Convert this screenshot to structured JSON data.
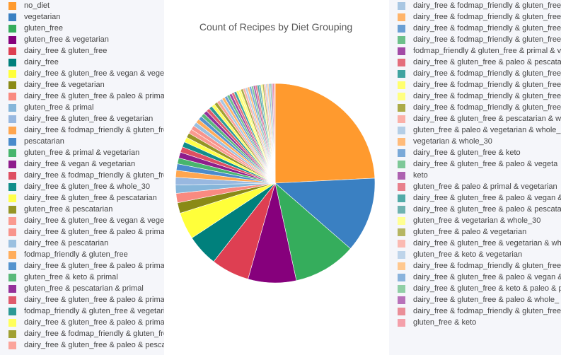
{
  "chart_data": {
    "type": "pie",
    "title": "Count of Recipes by Diet Grouping",
    "direction": "clockwise",
    "start": "12 o'clock",
    "legend_left": [
      {
        "label": "no_diet",
        "color": "#ff9a2e"
      },
      {
        "label": "vegetarian",
        "color": "#3a80c2"
      },
      {
        "label": "gluten_free",
        "color": "#35ad5c"
      },
      {
        "label": "gluten_free & vegetarian",
        "color": "#86007c"
      },
      {
        "label": "dairy_free & gluten_free",
        "color": "#de3f52"
      },
      {
        "label": "dairy_free",
        "color": "#00807c"
      },
      {
        "label": "dairy_free & gluten_free & vegan & vegeta",
        "color": "#ffff3a"
      },
      {
        "label": "dairy_free & vegetarian",
        "color": "#8a8a16"
      },
      {
        "label": "dairy_free & gluten_free & paleo & primal &",
        "color": "#f98a80"
      },
      {
        "label": "gluten_free & primal",
        "color": "#86b6da"
      },
      {
        "label": "dairy_free & gluten_free & vegetarian",
        "color": "#98b8e0"
      },
      {
        "label": "dairy_free & fodmap_friendly & gluten_free",
        "color": "#ffa64f"
      },
      {
        "label": "pescatarian",
        "color": "#4a8bcc"
      },
      {
        "label": "gluten_free & primal & vegetarian",
        "color": "#47b56d"
      },
      {
        "label": "dairy_free & vegan & vegetarian",
        "color": "#8e1c8c"
      },
      {
        "label": "dairy_free & fodmap_friendly & gluten_free",
        "color": "#de4f62"
      },
      {
        "label": "dairy_free & gluten_free & whole_30",
        "color": "#118e8a"
      },
      {
        "label": "dairy_free & gluten_free & pescatarian",
        "color": "#ffff4a"
      },
      {
        "label": "gluten_free & pescatarian",
        "color": "#959526"
      },
      {
        "label": "dairy_free & gluten_free & vegan & vegeta",
        "color": "#fa9a90"
      },
      {
        "label": "dairy_free & gluten_free & paleo & primal",
        "color": "#f8948c"
      },
      {
        "label": "dairy_free & pescatarian",
        "color": "#9bc0e0"
      },
      {
        "label": "fodmap_friendly & gluten_free",
        "color": "#ffad5c"
      },
      {
        "label": "dairy_free & gluten_free & paleo & primal &",
        "color": "#5593ce"
      },
      {
        "label": "gluten_free & keto & primal",
        "color": "#5ab97a"
      },
      {
        "label": "gluten_free & pescatarian & primal",
        "color": "#95309a"
      },
      {
        "label": "dairy_free & gluten_free & paleo & primal &",
        "color": "#e05a6c"
      },
      {
        "label": "fodmap_friendly & gluten_free & vegetaria",
        "color": "#2c9996"
      },
      {
        "label": "dairy_free & gluten_free & paleo & primal &",
        "color": "#ffff5c"
      },
      {
        "label": "dairy_free & fodmap_friendly & gluten_free",
        "color": "#a0a032"
      },
      {
        "label": "dairy_free & gluten_free & paleo & pescata",
        "color": "#fba49b"
      }
    ],
    "legend_right": [
      {
        "label": "dairy_free & fodmap_friendly & gluten_free",
        "color": "#a8c6e2"
      },
      {
        "label": "dairy_free & fodmap_friendly & gluten_free",
        "color": "#ffb46a"
      },
      {
        "label": "dairy_free & fodmap_friendly & gluten_free",
        "color": "#6a9fd4"
      },
      {
        "label": "dairy_free & fodmap_friendly & gluten_free",
        "color": "#6cc08a"
      },
      {
        "label": "fodmap_friendly & gluten_free & primal & v",
        "color": "#a24aa6"
      },
      {
        "label": "dairy_free & gluten_free & paleo & pescata",
        "color": "#e46e7c"
      },
      {
        "label": "dairy_free & fodmap_friendly & gluten_free",
        "color": "#3fa3a0"
      },
      {
        "label": "dairy_free & fodmap_friendly & gluten_free",
        "color": "#ffff6e"
      },
      {
        "label": "dairy_free & fodmap_friendly & gluten_free",
        "color": "#ffff80"
      },
      {
        "label": "dairy_free & fodmap_friendly & gluten_free",
        "color": "#abab48"
      },
      {
        "label": "dairy_free & gluten_free & pescatarian & w",
        "color": "#fbb0a8"
      },
      {
        "label": "gluten_free & paleo & vegetarian & whole_",
        "color": "#b4cee6"
      },
      {
        "label": "vegetarian & whole_30",
        "color": "#ffbb7a"
      },
      {
        "label": "dairy_free & gluten_free & keto",
        "color": "#7aa9d8"
      },
      {
        "label": "dairy_free & gluten_free & paleo & vegeta",
        "color": "#7ec898"
      },
      {
        "label": "keto",
        "color": "#ad62b0"
      },
      {
        "label": "gluten_free & paleo & primal & vegetarian",
        "color": "#e8808c"
      },
      {
        "label": "dairy_free & gluten_free & paleo & vegan &",
        "color": "#52aba8"
      },
      {
        "label": "dairy_free & gluten_free & paleo & pescata",
        "color": "#6fb2b0"
      },
      {
        "label": "gluten_free & vegetarian & whole_30",
        "color": "#ffff92"
      },
      {
        "label": "gluten_free & paleo & vegetarian",
        "color": "#b6b662"
      },
      {
        "label": "dairy_free & gluten_free & vegetarian & wh",
        "color": "#fbbab2"
      },
      {
        "label": "gluten_free & keto & vegetarian",
        "color": "#bed4ea"
      },
      {
        "label": "dairy_free & fodmap_friendly & gluten_free",
        "color": "#ffc88f"
      },
      {
        "label": "dairy_free & gluten_free & paleo & vegan &",
        "color": "#8ab3dc"
      },
      {
        "label": "dairy_free & gluten_free & keto & paleo & p",
        "color": "#90cfa6"
      },
      {
        "label": "dairy_free & gluten_free & paleo & whole_",
        "color": "#b872ba"
      },
      {
        "label": "dairy_free & fodmap_friendly & gluten_free",
        "color": "#ea8e98"
      },
      {
        "label": "gluten_free & keto",
        "color": "#f4a0aa"
      }
    ],
    "slice_share_percent": [
      25.4,
      12.8,
      10.7,
      8.2,
      6.5,
      5.4,
      4.6,
      1.8,
      1.6,
      1.4,
      1.3,
      1.2,
      1.1,
      1.0,
      1.0,
      0.95,
      0.9,
      0.85,
      0.8,
      0.75,
      0.72,
      0.7,
      0.68,
      0.66,
      0.64,
      0.62,
      0.6,
      0.58,
      0.56,
      0.54,
      0.52,
      0.5,
      0.48,
      0.46,
      0.45,
      0.44,
      0.43,
      0.42,
      0.41,
      0.4,
      0.39,
      0.38,
      0.37,
      0.36,
      0.35,
      0.34,
      0.33,
      0.32,
      0.31,
      0.3,
      0.29,
      0.28,
      0.27,
      0.26,
      0.25,
      0.24,
      0.23,
      0.22,
      0.21,
      0.2
    ]
  }
}
